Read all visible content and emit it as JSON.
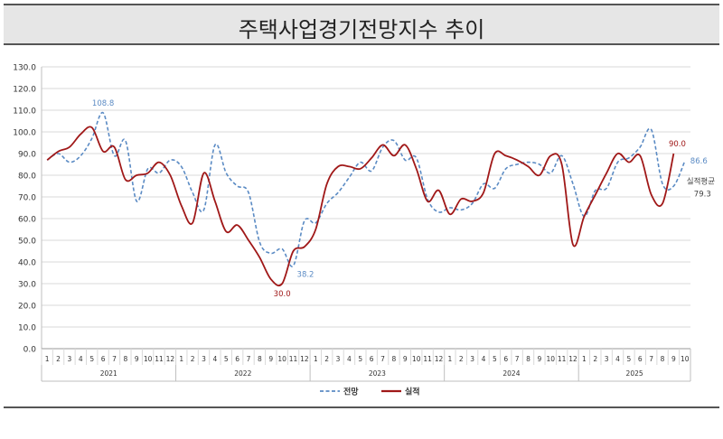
{
  "title": "주택사업경기전망지수  추이",
  "chart_data": {
    "type": "line",
    "ylim": [
      0,
      130
    ],
    "yticks": [
      "0.0",
      "10.0",
      "20.0",
      "30.0",
      "40.0",
      "50.0",
      "60.0",
      "70.0",
      "80.0",
      "90.0",
      "100.0",
      "110.0",
      "120.0",
      "130.0"
    ],
    "years": [
      {
        "label": "2021",
        "months": [
          "1",
          "2",
          "3",
          "4",
          "5",
          "6",
          "7",
          "8",
          "9",
          "10",
          "11",
          "12"
        ]
      },
      {
        "label": "2022",
        "months": [
          "1",
          "2",
          "3",
          "4",
          "5",
          "6",
          "7",
          "8",
          "9",
          "10",
          "11",
          "12"
        ]
      },
      {
        "label": "2023",
        "months": [
          "1",
          "2",
          "3",
          "4",
          "5",
          "6",
          "7",
          "8",
          "9",
          "10",
          "11",
          "12"
        ]
      },
      {
        "label": "2024",
        "months": [
          "1",
          "2",
          "3",
          "4",
          "5",
          "6",
          "7",
          "8",
          "9",
          "10",
          "11",
          "12"
        ]
      },
      {
        "label": "2025",
        "months": [
          "1",
          "2",
          "3",
          "4",
          "5",
          "6",
          "7",
          "8",
          "9",
          "10"
        ]
      }
    ],
    "series": [
      {
        "name": "전망",
        "color": "#5b8bc4",
        "dash": true,
        "values": [
          87,
          90,
          86,
          89,
          97,
          108.8,
          89,
          96,
          68,
          83,
          81,
          87,
          84,
          72,
          64,
          94,
          81,
          75,
          72,
          49,
          44,
          46,
          38.2,
          59,
          58,
          67,
          72,
          79,
          86,
          82,
          93,
          96,
          87,
          88,
          69,
          63,
          65,
          64,
          67,
          76,
          74,
          83,
          85,
          86,
          85,
          81,
          89,
          76,
          61,
          73,
          74,
          86,
          88,
          93,
          101,
          76,
          75,
          86.6
        ]
      },
      {
        "name": "실적",
        "color": "#a01818",
        "dash": false,
        "values": [
          87,
          91,
          93,
          99,
          102,
          91,
          93,
          78,
          80,
          81,
          86,
          80,
          66,
          58,
          81,
          68,
          54,
          57,
          50,
          42,
          32,
          30,
          45,
          47,
          55,
          76,
          84,
          84,
          83,
          88,
          94,
          89,
          94,
          83,
          68,
          73,
          62,
          69,
          68,
          72,
          90,
          89,
          87,
          84,
          80,
          89,
          85,
          48,
          61,
          71,
          81,
          90,
          86,
          89,
          71,
          67,
          90
        ]
      }
    ],
    "data_labels": [
      {
        "series": "전망",
        "index": 5,
        "text": "108.8",
        "color": "#5b8bc4"
      },
      {
        "series": "전망",
        "index": 22,
        "text": "38.2",
        "color": "#5b8bc4"
      },
      {
        "series": "실적",
        "index": 21,
        "text": "30.0",
        "color": "#a01818"
      },
      {
        "series": "실적",
        "index": 56,
        "text": "90.0",
        "color": "#a01818"
      },
      {
        "series": "전망",
        "index": 57,
        "text": "86.6",
        "color": "#5b8bc4"
      }
    ],
    "annotation": {
      "label": "실적평균",
      "value": "79.3"
    },
    "legend": {
      "position": "bottom"
    },
    "grid": true
  }
}
